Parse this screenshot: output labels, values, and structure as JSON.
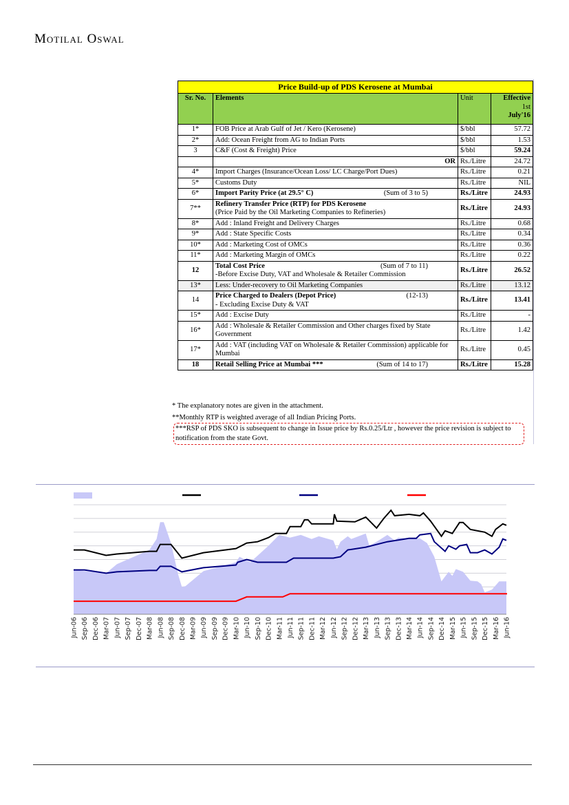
{
  "header": {
    "logo": "Motilal Oswal"
  },
  "table": {
    "title": "Price Build-up of PDS Kerosene at Mumbai",
    "columns": [
      "Sr. No.",
      "Elements",
      "Unit",
      "Effective",
      "1st",
      "July'16"
    ],
    "rows": [
      {
        "sr": "1*",
        "el": "FOB Price at Arab Gulf of Jet / Kero (Kerosene)",
        "unit": "$/bbl",
        "val": "57.72"
      },
      {
        "sr": "2*",
        "el": "Add: Ocean Freight from AG to Indian Ports",
        "unit": "$/bbl",
        "val": "1.53"
      },
      {
        "sr": "3",
        "el": "C&F (Cost & Freight) Price",
        "unit": "$/bbl",
        "val": "59.24"
      },
      {
        "sr": "",
        "el": "OR",
        "unit": "Rs./Litre",
        "val": "24.72"
      },
      {
        "sr": "4*",
        "el": "Import Charges (Insurance/Ocean Loss/ LC Charge/Port Dues)",
        "unit": "Rs./Litre",
        "val": "0.21"
      },
      {
        "sr": "5*",
        "el": "Customs Duty",
        "unit": "Rs./Litre",
        "val": "NIL"
      },
      {
        "sr": "6*",
        "el": "Import Parity Price (at 29.5° C)",
        "note": "(Sum of 3 to 5)",
        "unit": "Rs./Litre",
        "val": "24.93"
      },
      {
        "sr": "7**",
        "el": "Refinery Transfer Price (RTP) for PDS Kerosene",
        "el2": "(Price Paid by the Oil Marketing Companies to Refineries)",
        "unit": "Rs./Litre",
        "val": "24.93"
      },
      {
        "sr": "8*",
        "el": "Add : Inland Freight and Delivery Charges",
        "unit": "Rs./Litre",
        "val": "0.68"
      },
      {
        "sr": "9*",
        "el": "Add : State Specific Costs",
        "unit": "Rs./Litre",
        "val": "0.34"
      },
      {
        "sr": "10*",
        "el": "Add : Marketing Cost of OMCs",
        "unit": "Rs./Litre",
        "val": "0.36"
      },
      {
        "sr": "11*",
        "el": "Add : Marketing Margin of OMCs",
        "unit": "Rs./Litre",
        "val": "0.22"
      },
      {
        "sr": "12",
        "el": "Total Cost Price",
        "note": "(Sum of 7 to 11)",
        "el2": "-Before Excise Duty, VAT and Wholesale & Retailer Commission",
        "unit": "Rs./Litre",
        "val": "26.52"
      },
      {
        "sr": "13*",
        "el": "Less: Under-recovery to Oil Marketing Companies",
        "unit": "Rs./Litre",
        "val": "13.12"
      },
      {
        "sr": "14",
        "el": "Price Charged to Dealers (Depot Price)",
        "note": "(12-13)",
        "el2": "- Excluding Excise Duty & VAT",
        "unit": "Rs./Litre",
        "val": "13.41"
      },
      {
        "sr": "15*",
        "el": "Add : Excise Duty",
        "unit": "Rs./Litre",
        "val": "-"
      },
      {
        "sr": "16*",
        "el": "Add : Wholesale & Retailer Commission and Other charges fixed by State Government",
        "unit": "Rs./Litre",
        "val": "1.42"
      },
      {
        "sr": "17*",
        "el": "Add : VAT (including VAT on Wholesale & Retailer Commission) applicable for Mumbai",
        "unit": "Rs./Litre",
        "val": "0.45"
      },
      {
        "sr": "18",
        "el": "Retail Selling Price at Mumbai ***",
        "note": "(Sum of 14 to 17)",
        "unit": "Rs./Litre",
        "val": "15.28"
      }
    ],
    "notes": [
      "* The explanatory notes are given in the attachment.",
      "**Monthly RTP is weighted average of all Indian Pricing Ports.",
      "***RSP of PDS SKO is subsequent to change in Issue price by Rs.0.25/Ltr , however the price revision is subject to notification from the state Govt."
    ]
  },
  "chart_data": {
    "type": "line",
    "title": "",
    "xlabel": "",
    "ylabel": "",
    "x_unit": "months since Jun-06",
    "ylim": [
      0,
      8
    ],
    "grid": true,
    "legend": "top",
    "tick_labels": [
      "Jun-06",
      "Sep-06",
      "Dec-06",
      "Mar-07",
      "Jun-07",
      "Sep-07",
      "Dec-07",
      "Mar-08",
      "Jun-08",
      "Sep-08",
      "Dec-08",
      "Mar-09",
      "Jun-09",
      "Sep-09",
      "Dec-09",
      "Mar-10",
      "Jun-10",
      "Sep-10",
      "Dec-10",
      "Mar-11",
      "Jun-11",
      "Sep-11",
      "Dec-11",
      "Mar-12",
      "Jun-12",
      "Sep-12",
      "Dec-12",
      "Mar-13",
      "Jun-13",
      "Sep-13",
      "Dec-13",
      "Mar-14",
      "Jun-14",
      "Sep-14",
      "Dec-14",
      "Mar-15",
      "Jun-15",
      "Sep-15",
      "Dec-15",
      "Mar-16",
      "Jun-16"
    ],
    "series": [
      {
        "name": "area",
        "kind": "area",
        "color": "#c8c8f8",
        "points": [
          [
            0,
            3.24
          ],
          [
            9,
            3.0
          ],
          [
            12,
            3.66
          ],
          [
            21,
            4.7
          ],
          [
            23,
            5.5
          ],
          [
            24,
            6.73
          ],
          [
            25,
            6.73
          ],
          [
            27,
            5.2
          ],
          [
            29,
            2.9
          ],
          [
            30,
            2.0
          ],
          [
            31,
            2.05
          ],
          [
            36,
            3.15
          ],
          [
            45,
            3.8
          ],
          [
            46,
            4.2
          ],
          [
            49,
            3.8
          ],
          [
            54,
            5.0
          ],
          [
            57,
            5.8
          ],
          [
            60,
            5.6
          ],
          [
            63,
            5.8
          ],
          [
            66,
            5.5
          ],
          [
            68,
            5.7
          ],
          [
            72,
            5.4
          ],
          [
            73,
            4.75
          ],
          [
            74,
            5.3
          ],
          [
            76,
            5.7
          ],
          [
            77,
            5.5
          ],
          [
            81,
            5.9
          ],
          [
            82,
            5.0
          ],
          [
            84,
            5.3
          ],
          [
            87,
            5.8
          ],
          [
            89,
            5.4
          ],
          [
            90,
            5.6
          ],
          [
            93,
            5.5
          ],
          [
            96,
            5.55
          ],
          [
            98,
            5.2
          ],
          [
            100,
            4.2
          ],
          [
            102,
            2.4
          ],
          [
            104,
            3.1
          ],
          [
            105,
            2.8
          ],
          [
            106,
            3.3
          ],
          [
            108,
            3.1
          ],
          [
            110,
            2.45
          ],
          [
            112,
            2.4
          ],
          [
            113,
            2.2
          ],
          [
            114,
            1.6
          ],
          [
            116,
            1.8
          ],
          [
            118,
            2.4
          ],
          [
            120,
            2.4
          ]
        ]
      },
      {
        "name": "black",
        "kind": "line",
        "color": "#000000",
        "points": [
          [
            0,
            4.7
          ],
          [
            3,
            4.7
          ],
          [
            9,
            4.3
          ],
          [
            12,
            4.4
          ],
          [
            21,
            4.6
          ],
          [
            23,
            4.6
          ],
          [
            24,
            5.1
          ],
          [
            27,
            5.1
          ],
          [
            30,
            4.1
          ],
          [
            36,
            4.5
          ],
          [
            45,
            4.8
          ],
          [
            48,
            5.2
          ],
          [
            51,
            5.3
          ],
          [
            54,
            5.6
          ],
          [
            56,
            5.9
          ],
          [
            59,
            5.9
          ],
          [
            60,
            6.4
          ],
          [
            63,
            6.4
          ],
          [
            64,
            6.9
          ],
          [
            65,
            6.9
          ],
          [
            66,
            6.6
          ],
          [
            72,
            6.6
          ],
          [
            72.3,
            7.3
          ],
          [
            73,
            6.8
          ],
          [
            78,
            6.75
          ],
          [
            81,
            7.1
          ],
          [
            84,
            6.3
          ],
          [
            86,
            7.0
          ],
          [
            88,
            7.6
          ],
          [
            89,
            7.2
          ],
          [
            93,
            7.3
          ],
          [
            96,
            7.2
          ],
          [
            97,
            7.4
          ],
          [
            99,
            6.8
          ],
          [
            102,
            5.7
          ],
          [
            103,
            6.1
          ],
          [
            105,
            5.9
          ],
          [
            107,
            6.7
          ],
          [
            108,
            6.7
          ],
          [
            110,
            6.2
          ],
          [
            114,
            6.0
          ],
          [
            116,
            5.7
          ],
          [
            117,
            6.2
          ],
          [
            119,
            6.6
          ],
          [
            120,
            6.5
          ]
        ]
      },
      {
        "name": "blue",
        "kind": "line",
        "color": "#000080",
        "points": [
          [
            0,
            3.24
          ],
          [
            3,
            3.24
          ],
          [
            9,
            3.0
          ],
          [
            12,
            3.1
          ],
          [
            21,
            3.2
          ],
          [
            23,
            3.2
          ],
          [
            24,
            3.5
          ],
          [
            27,
            3.5
          ],
          [
            30,
            3.1
          ],
          [
            36,
            3.4
          ],
          [
            45,
            3.6
          ],
          [
            45.5,
            3.8
          ],
          [
            48,
            4.0
          ],
          [
            51,
            3.8
          ],
          [
            59,
            3.8
          ],
          [
            61,
            4.1
          ],
          [
            72,
            4.1
          ],
          [
            74,
            4.2
          ],
          [
            76,
            4.7
          ],
          [
            81,
            4.9
          ],
          [
            87,
            5.3
          ],
          [
            93,
            5.55
          ],
          [
            95,
            5.55
          ],
          [
            96,
            5.8
          ],
          [
            99,
            5.9
          ],
          [
            100,
            5.3
          ],
          [
            103,
            4.6
          ],
          [
            104,
            5.0
          ],
          [
            106,
            4.75
          ],
          [
            107,
            5.0
          ],
          [
            109,
            5.1
          ],
          [
            110,
            4.5
          ],
          [
            112,
            4.5
          ],
          [
            114,
            4.7
          ],
          [
            116,
            4.4
          ],
          [
            118,
            4.9
          ],
          [
            119,
            5.5
          ],
          [
            120,
            5.4
          ]
        ]
      },
      {
        "name": "red",
        "kind": "line",
        "color": "#ff0000",
        "points": [
          [
            0,
            0.95
          ],
          [
            45,
            0.95
          ],
          [
            48,
            1.27
          ],
          [
            58,
            1.27
          ],
          [
            60,
            1.5
          ],
          [
            120,
            1.5
          ],
          [
            120,
            1.55
          ]
        ]
      }
    ]
  }
}
